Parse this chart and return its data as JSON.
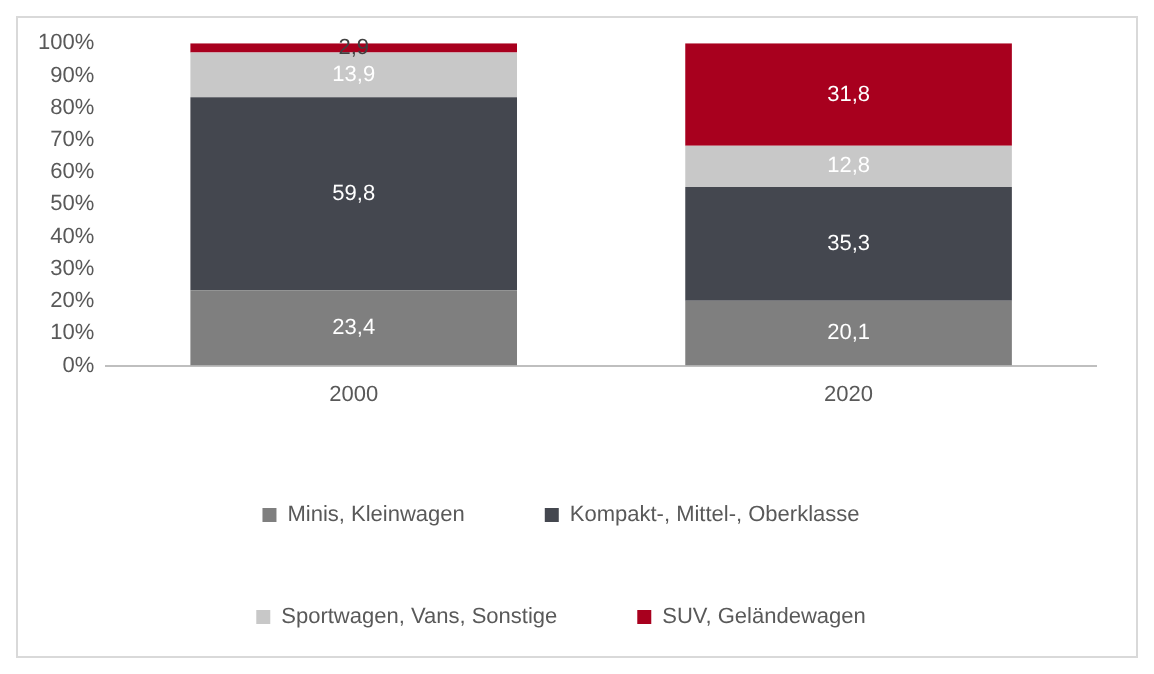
{
  "chart_data": {
    "type": "bar",
    "stacked": true,
    "categories": [
      "2000",
      "2020"
    ],
    "series": [
      {
        "name": "Minis, Kleinwagen",
        "color": "#7f7f7f",
        "values": [
          23.4,
          20.1
        ],
        "value_labels": [
          "23,4",
          "20,1"
        ]
      },
      {
        "name": "Kompakt-, Mittel-, Oberklasse",
        "color": "#44474f",
        "values": [
          59.8,
          35.3
        ],
        "value_labels": [
          "59,8",
          "35,3"
        ]
      },
      {
        "name": "Sportwagen, Vans, Sonstige",
        "color": "#c8c8c8",
        "values": [
          13.9,
          12.8
        ],
        "value_labels": [
          "13,9",
          "12,8"
        ]
      },
      {
        "name": "SUV, Geländewagen",
        "color": "#a8001e",
        "values": [
          2.9,
          31.8
        ],
        "value_labels": [
          "2,9",
          "31,8"
        ]
      }
    ],
    "ylim": [
      0,
      100
    ],
    "yticks": [
      {
        "value": 0,
        "label": "0%"
      },
      {
        "value": 10,
        "label": "10%"
      },
      {
        "value": 20,
        "label": "20%"
      },
      {
        "value": 30,
        "label": "30%"
      },
      {
        "value": 40,
        "label": "40%"
      },
      {
        "value": 50,
        "label": "50%"
      },
      {
        "value": 60,
        "label": "60%"
      },
      {
        "value": 70,
        "label": "70%"
      },
      {
        "value": 80,
        "label": "80%"
      },
      {
        "value": 90,
        "label": "90%"
      },
      {
        "value": 100,
        "label": "100%"
      }
    ],
    "grid": false,
    "legend": "bottom"
  }
}
